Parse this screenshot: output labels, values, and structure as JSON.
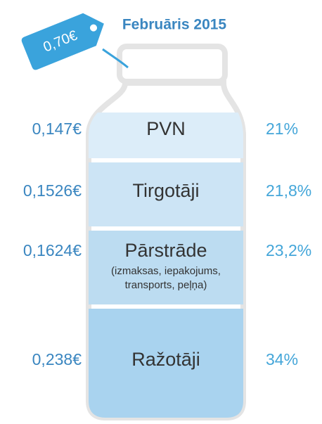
{
  "title": "Februāris 2015",
  "price_tag": "0,70€",
  "segments": [
    {
      "amount": "0,147€",
      "name": "PVN",
      "share": "21%"
    },
    {
      "amount": "0,1526€",
      "name": "Tirgotāji",
      "share": "21,8%"
    },
    {
      "amount": "0,1624€",
      "name": "Pārstrāde",
      "note_lines": [
        "(izmaksas, iepakojums,",
        "transports, peļņa)"
      ],
      "share": "23,2%"
    },
    {
      "amount": "0,238€",
      "name": "Ražotāji",
      "share": "34%"
    }
  ]
}
